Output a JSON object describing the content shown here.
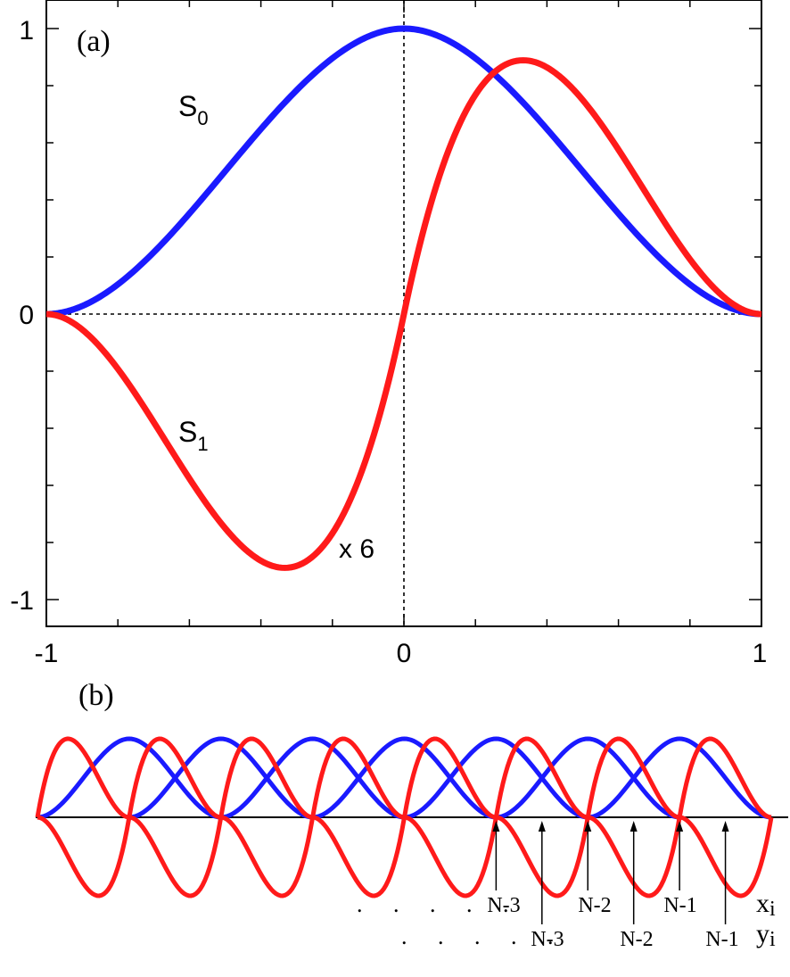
{
  "chart_data": [
    {
      "type": "line",
      "panel_label": "(a)",
      "xlim": [
        -1,
        1
      ],
      "ylim": [
        -1.1,
        1.1
      ],
      "x_ticks": [
        "-1",
        "0",
        "1"
      ],
      "y_ticks": [
        "1",
        "0",
        "-1"
      ],
      "grid": false,
      "reference_lines": {
        "x": 0,
        "y": 0,
        "style": "dashed"
      },
      "scale_annotation": "x 6",
      "series": [
        {
          "name": "S0",
          "name_base": "S",
          "name_sub": "0",
          "color": "#1a1aff",
          "x": [
            -1,
            -0.8,
            -0.6,
            -0.4,
            -0.2,
            0,
            0.2,
            0.4,
            0.6,
            0.8,
            1
          ],
          "y": [
            0,
            0.096,
            0.352,
            0.648,
            0.896,
            1,
            0.896,
            0.648,
            0.352,
            0.096,
            0
          ]
        },
        {
          "name": "S1",
          "name_base": "S",
          "name_sub": "1",
          "color": "#ff1a1a",
          "scale_factor": 6,
          "x": [
            -1,
            -0.8,
            -0.6,
            -0.4,
            -0.333,
            -0.2,
            0,
            0.2,
            0.333,
            0.4,
            0.6,
            0.8,
            1
          ],
          "y": [
            0,
            -0.249,
            -0.691,
            -0.864,
            -0.889,
            -0.768,
            0,
            0.768,
            0.889,
            0.864,
            0.691,
            0.249,
            0
          ]
        }
      ]
    },
    {
      "type": "line",
      "panel_label": "(b)",
      "xlim": [
        0,
        8
      ],
      "ylim": [
        -1,
        1
      ],
      "x_ticks": [],
      "y_ticks": [],
      "grid": false,
      "series": [
        {
          "name": "",
          "color": "#1a1aff",
          "function": "S0 shape repeated on each unit interval [i-1, i+1], i = 1..7"
        },
        {
          "name": "",
          "color": "#ff1a1a",
          "function": "S1 shape repeated on each unit interval [i-1, i+1], i = 0..8, clipped to [0, 8]"
        }
      ],
      "x_markers": [
        {
          "label": "N-3",
          "row": "xi",
          "x": 5
        },
        {
          "label": "N-2",
          "row": "xi",
          "x": 6
        },
        {
          "label": "N-1",
          "row": "xi",
          "x": 7
        },
        {
          "label": "N-3",
          "row": "yi",
          "x": 5.5
        },
        {
          "label": "N-2",
          "row": "yi",
          "x": 6.5
        },
        {
          "label": "N-1",
          "row": "yi",
          "x": 7.5
        }
      ],
      "row_labels": {
        "xi": {
          "base": "x",
          "sub": "i"
        },
        "yi": {
          "base": "y",
          "sub": "i"
        }
      },
      "ellipsis": ". . . . ."
    }
  ]
}
